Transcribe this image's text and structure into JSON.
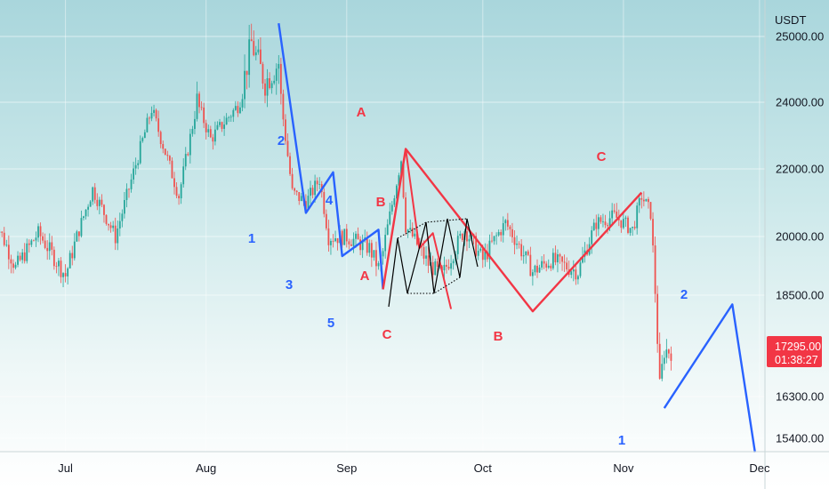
{
  "chart_data": {
    "type": "candlestick",
    "currency_label": "USDT",
    "x_ticks": [
      "Jul",
      "Aug",
      "Sep",
      "Oct",
      "Nov",
      "Dec"
    ],
    "y_ticks": [
      "25000.00",
      "24000.00",
      "22000.00",
      "20000.00",
      "18500.00",
      "16300.00",
      "15400.00"
    ],
    "current_price": "17295.00",
    "countdown": "01:38:27",
    "colors": {
      "up": "#26a69a",
      "down": "#ef5350",
      "impulse": "#2962ff",
      "correction": "#f23645",
      "subwave": "#000000",
      "badge": "#f23645"
    },
    "candles": [],
    "waves": {
      "blue_impulse": {
        "points": [
          {
            "date": "2022-08-17",
            "price": 25200
          },
          {
            "date": "2022-08-23",
            "price": 20700
          },
          {
            "date": "2022-08-29",
            "price": 21900
          },
          {
            "date": "2022-08-31",
            "price": 19500
          },
          {
            "date": "2022-09-08",
            "price": 20200
          },
          {
            "date": "2022-09-09",
            "price": 18650
          }
        ],
        "labels": [
          "1",
          "2",
          "3",
          "4",
          "5"
        ]
      },
      "red_correction": {
        "points": [
          {
            "date": "2022-09-09",
            "price": 18650
          },
          {
            "date": "2022-09-14",
            "price": 22600
          },
          {
            "date": "2022-10-12",
            "price": 18150
          },
          {
            "date": "2022-11-05",
            "price": 21300
          }
        ],
        "labels": [
          "A",
          "B",
          "C"
        ]
      },
      "red_sub_abc": {
        "labels": [
          "A",
          "B",
          "C"
        ]
      },
      "blue_projection": {
        "points": [
          {
            "date": "2022-11-10",
            "price": 16050
          },
          {
            "date": "2022-11-25",
            "price": 18300
          },
          {
            "date": "2022-11-30",
            "price": 15100
          }
        ],
        "labels": [
          "1",
          "2"
        ]
      }
    }
  }
}
